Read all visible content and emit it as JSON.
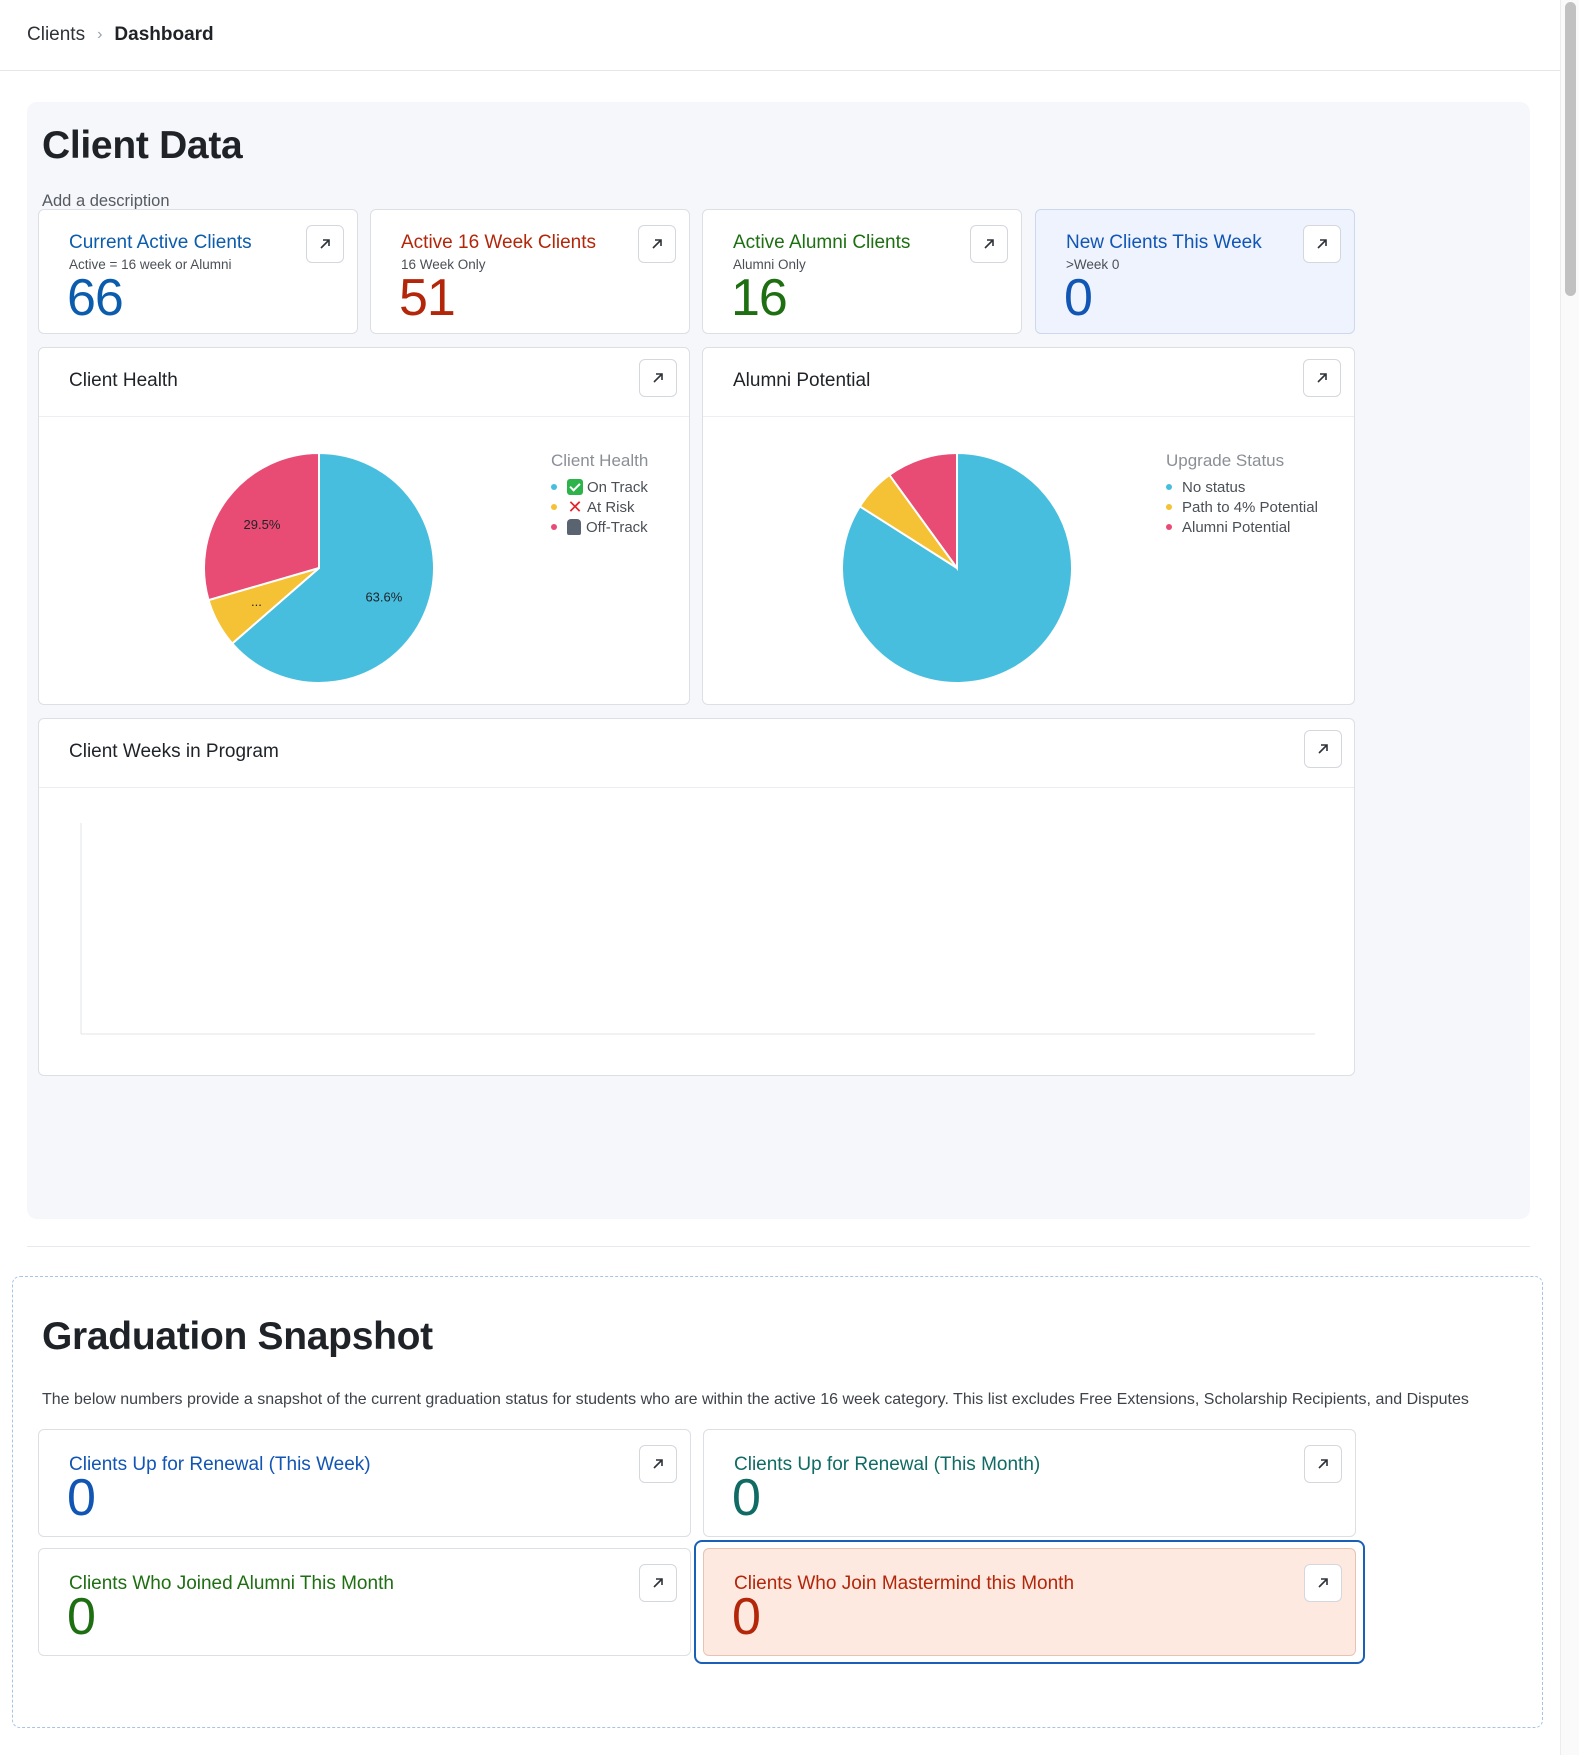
{
  "breadcrumb": {
    "parent": "Clients",
    "separator": "›",
    "current": "Dashboard"
  },
  "client_data": {
    "title": "Client Data",
    "description": "Add a description",
    "kpis": [
      {
        "title": "Current Active Clients",
        "subtitle": "Active = 16 week or Alumni",
        "value": "66",
        "color": "#0b5cad"
      },
      {
        "title": "Active 16 Week Clients",
        "subtitle": "16 Week Only",
        "value": "51",
        "color": "#b3260a"
      },
      {
        "title": "Active Alumni Clients",
        "subtitle": "Alumni Only",
        "value": "16",
        "color": "#1e6e12"
      },
      {
        "title": "New Clients This Week",
        "subtitle": ">Week 0",
        "value": "0",
        "color": "#1155b5"
      }
    ],
    "client_health": {
      "title": "Client Health",
      "legend_title": "Client Health",
      "legend": [
        {
          "label": "On Track",
          "icon": "check-mark-icon",
          "color": "#48bedf"
        },
        {
          "label": "At Risk",
          "icon": "cross-mark-icon",
          "color": "#f5c135"
        },
        {
          "label": "Off-Track",
          "icon": "train-icon",
          "color": "#e84b73"
        }
      ]
    },
    "alumni_potential": {
      "title": "Alumni Potential",
      "legend_title": "Upgrade Status",
      "legend": [
        {
          "label": "No status",
          "color": "#48bedf"
        },
        {
          "label": "Path to 4% Potential",
          "color": "#f5c135"
        },
        {
          "label": "Alumni Potential",
          "color": "#e84b73"
        }
      ]
    },
    "weeks_in_program": {
      "title": "Client Weeks in Program"
    }
  },
  "chart_data": [
    {
      "type": "pie",
      "title": "Client Health",
      "legend_title": "Client Health",
      "labels": [
        "On Track",
        "At Risk",
        "Off-Track"
      ],
      "values": [
        63.6,
        6.9,
        29.5
      ],
      "data_labels": [
        "63.6%",
        "...",
        "29.5%"
      ],
      "colors": [
        "#48bedf",
        "#f5c135",
        "#e84b73"
      ],
      "legend": "right"
    },
    {
      "type": "pie",
      "title": "Alumni Potential",
      "legend_title": "Upgrade Status",
      "labels": [
        "No status",
        "Path to 4% Potential",
        "Alumni Potential"
      ],
      "values": [
        84,
        6,
        10
      ],
      "colors": [
        "#48bedf",
        "#f5c135",
        "#e84b73"
      ],
      "legend": "right"
    },
    {
      "type": "bar",
      "title": "Client Weeks in Program",
      "categories": [],
      "values": []
    }
  ],
  "graduation": {
    "title": "Graduation Snapshot",
    "description": "The below numbers provide a snapshot of the current graduation status for students who are within the active 16 week category. This list excludes Free Extensions, Scholarship Recipients, and Disputes",
    "cards": [
      {
        "title": "Clients Up for Renewal (This Week)",
        "value": "0",
        "color": "#1155b5"
      },
      {
        "title": "Clients Up for Renewal (This Month)",
        "value": "0",
        "color": "#0f6b63"
      },
      {
        "title": "Clients Who Joined Alumni This Month",
        "value": "0",
        "color": "#1e6e12"
      },
      {
        "title": "Clients Who Join Mastermind this Month",
        "value": "0",
        "color": "#b3260a"
      }
    ]
  }
}
